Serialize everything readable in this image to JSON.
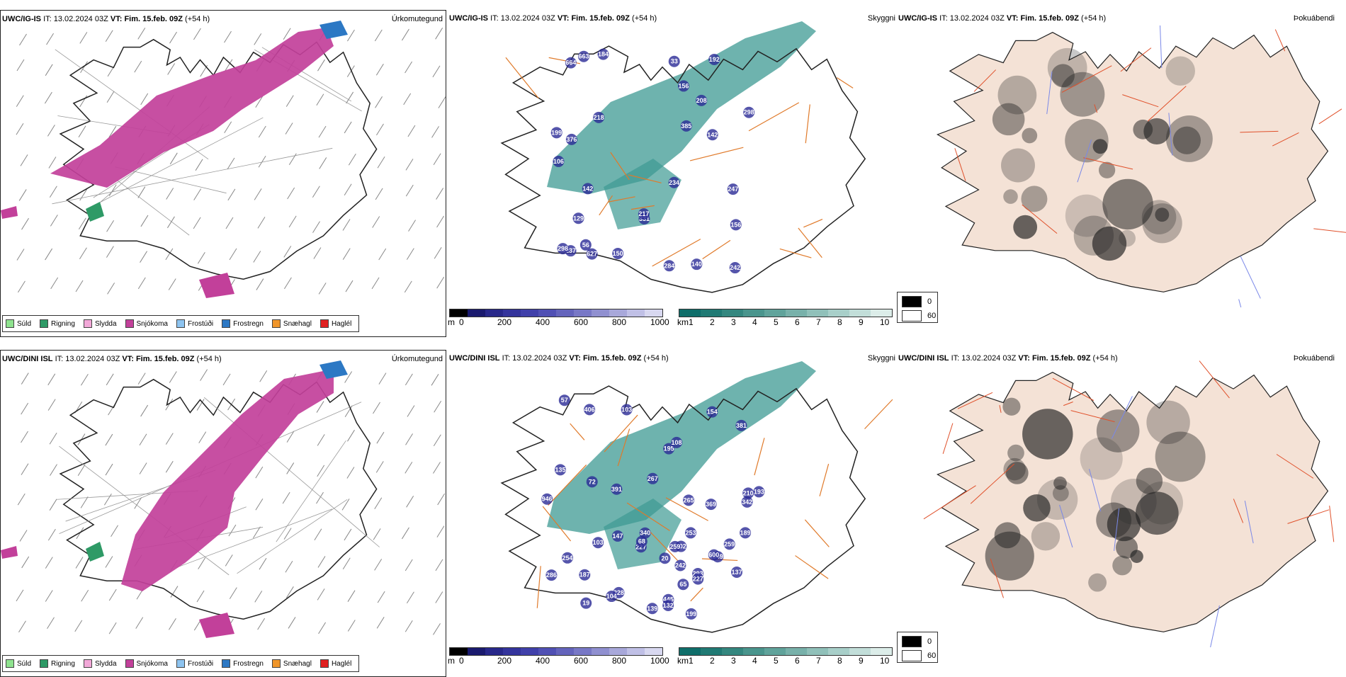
{
  "rows": [
    {
      "model": "UWC/IG-IS",
      "it_label": "IT:",
      "it_value": "13.02.2024 03Z",
      "vt_label": "VT:",
      "vt_value": "Fim. 15.feb. 09Z",
      "lead": "(+54 h)",
      "precip_type_title": "Úrkomutegund",
      "cloud_title": "Skyggni",
      "fog_title": "Þokuábendi",
      "cloud_labels": [
        "237",
        "156",
        "208",
        "199",
        "376",
        "663",
        "142",
        "150",
        "106",
        "242",
        "247",
        "140",
        "331",
        "298",
        "217",
        "218",
        "184",
        "156",
        "284",
        "142",
        "234",
        "192",
        "298",
        "385",
        "627",
        "664",
        "129",
        "56",
        "33"
      ]
    },
    {
      "model": "UWC/DINI ISL",
      "it_label": "IT:",
      "it_value": "13.02.2024 03Z",
      "vt_label": "VT:",
      "vt_value": "Fim. 15.feb. 09Z",
      "lead": "(+54 h)",
      "precip_type_title": "Úrkomutegund",
      "cloud_title": "Skyggni",
      "fog_title": "Þokuábendi",
      "cloud_labels": [
        "293",
        "369",
        "195",
        "342",
        "946",
        "210",
        "267",
        "193",
        "406",
        "227",
        "254",
        "265",
        "381",
        "102",
        "199",
        "227",
        "189",
        "445",
        "242",
        "228",
        "253",
        "349",
        "187",
        "391",
        "104",
        "600",
        "259",
        "340",
        "139",
        "259",
        "108",
        "65",
        "137",
        "57",
        "20",
        "135",
        "72",
        "132",
        "68",
        "147",
        "286",
        "103",
        "154",
        "103",
        "19"
      ]
    }
  ],
  "precip_legend": [
    {
      "label": "Súld",
      "color": "#8fe38f"
    },
    {
      "label": "Rigning",
      "color": "#2e9a66"
    },
    {
      "label": "Slydda",
      "color": "#f2a8d8"
    },
    {
      "label": "Snjókoma",
      "color": "#c2409a"
    },
    {
      "label": "Frostúði",
      "color": "#8ec4f0"
    },
    {
      "label": "Frostregn",
      "color": "#2c78c4"
    },
    {
      "label": "Snæhagl",
      "color": "#f0962a"
    },
    {
      "label": "Haglél",
      "color": "#e02020"
    }
  ],
  "colorbar_m": {
    "unit": "m",
    "ticks": [
      "0",
      "200",
      "400",
      "600",
      "800",
      "1000"
    ],
    "colors": [
      "#000000",
      "#1a1a6e",
      "#28288a",
      "#34349c",
      "#4040aa",
      "#5050b4",
      "#6464bc",
      "#7878c6",
      "#9090d0",
      "#a8a8da",
      "#c0c0e6",
      "#d8d8f0"
    ]
  },
  "colorbar_km": {
    "unit": "km",
    "ticks": [
      "1",
      "2",
      "3",
      "4",
      "5",
      "6",
      "7",
      "8",
      "9",
      "10"
    ],
    "colors": [
      "#0f6e6a",
      "#207a74",
      "#34877f",
      "#4a958d",
      "#60a39b",
      "#78b1aa",
      "#90c0b9",
      "#a8cfc9",
      "#c2ded9",
      "#dcede9"
    ]
  },
  "fog_legend": [
    {
      "label": "0",
      "color": "#000000"
    },
    {
      "label": "60",
      "color": "#ffffff"
    }
  ],
  "colors": {
    "snow": "#c2409a",
    "coast": "#222222",
    "roads": "#e07a2a",
    "cloud_fill": "#3d9a93",
    "low_cloud": "#2a2a96",
    "fog_land": "#f4e2d6",
    "fog_roads": "#e0502a",
    "rivers": "#7a88e8"
  }
}
